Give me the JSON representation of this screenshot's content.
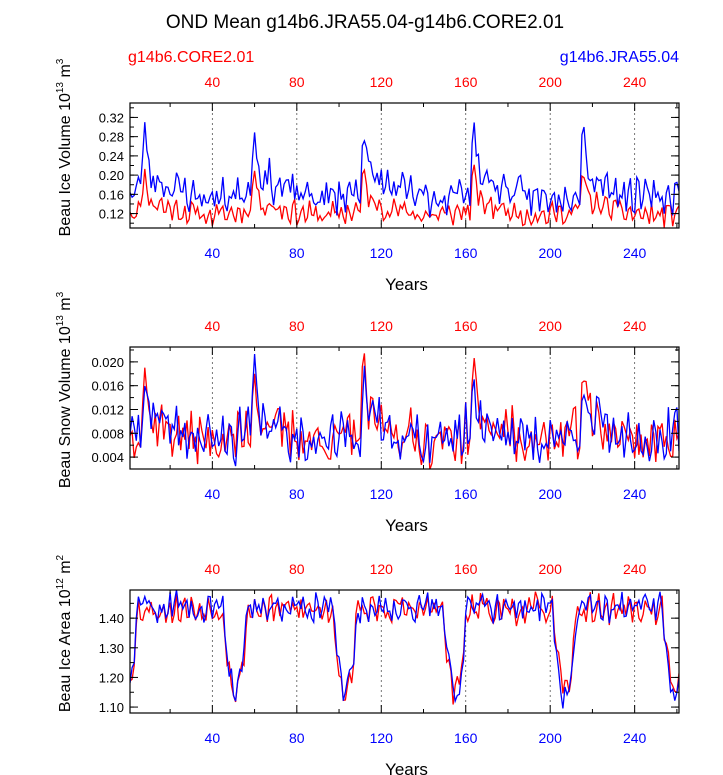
{
  "title": "OND Mean g14b6.JRA55.04-g14b6.CORE2.01",
  "legend_left": "g14b6.CORE2.01",
  "legend_right": "g14b6.JRA55.04",
  "colors": {
    "red": "#ff0000",
    "blue": "#0000ff",
    "axis": "#000000",
    "grid": "#555555"
  },
  "chart_data": [
    {
      "type": "line",
      "name": "panel-ice-volume",
      "ylabel": "Beau Ice Volume 10",
      "ylabel_sup": "13",
      "ylabel_unit": " m",
      "ylabel_unit_sup": "3",
      "xlabel": "Years",
      "xlim": [
        1,
        261
      ],
      "ylim": [
        0.09,
        0.35
      ],
      "yticks": [
        0.12,
        0.16,
        0.2,
        0.24,
        0.28,
        0.32
      ],
      "ytick_labels": [
        "0.12",
        "0.16",
        "0.20",
        "0.24",
        "0.28",
        "0.32"
      ],
      "xticks": [
        40,
        80,
        120,
        160,
        200,
        240
      ],
      "xtick_labels": [
        "40",
        "80",
        "120",
        "160",
        "200",
        "240"
      ],
      "series": [
        {
          "name": "g14b6.CORE2.01",
          "color": "#ff0000",
          "base": 0.13,
          "amp": 0.09,
          "noise": 0.02,
          "seed": 11
        },
        {
          "name": "g14b6.JRA55.04",
          "color": "#0000ff",
          "base": 0.175,
          "amp": 0.15,
          "noise": 0.03,
          "seed": 23
        }
      ]
    },
    {
      "type": "line",
      "name": "panel-snow-volume",
      "ylabel": "Beau Snow Volume 10",
      "ylabel_sup": "13",
      "ylabel_unit": " m",
      "ylabel_unit_sup": "3",
      "xlabel": "Years",
      "xlim": [
        1,
        261
      ],
      "ylim": [
        0.002,
        0.0225
      ],
      "yticks": [
        0.004,
        0.008,
        0.012,
        0.016,
        0.02
      ],
      "ytick_labels": [
        "0.004",
        "0.008",
        "0.012",
        "0.016",
        "0.020"
      ],
      "xticks": [
        40,
        80,
        120,
        160,
        200,
        240
      ],
      "xtick_labels": [
        "40",
        "80",
        "120",
        "160",
        "200",
        "240"
      ],
      "series": [
        {
          "name": "g14b6.CORE2.01",
          "color": "#ff0000",
          "base": 0.0085,
          "amp": 0.012,
          "noise": 0.0035,
          "seed": 37
        },
        {
          "name": "g14b6.JRA55.04",
          "color": "#0000ff",
          "base": 0.0085,
          "amp": 0.011,
          "noise": 0.0035,
          "seed": 41
        }
      ]
    },
    {
      "type": "line",
      "name": "panel-ice-area",
      "ylabel": "Beau Ice Area 10",
      "ylabel_sup": "12",
      "ylabel_unit": " m",
      "ylabel_unit_sup": "2",
      "xlabel": "Years",
      "xlim": [
        1,
        261
      ],
      "ylim": [
        1.08,
        1.495
      ],
      "yticks": [
        1.1,
        1.2,
        1.3,
        1.4
      ],
      "ytick_labels": [
        "1.10",
        "1.20",
        "1.30",
        "1.40"
      ],
      "xticks": [
        40,
        80,
        120,
        160,
        200,
        240
      ],
      "xtick_labels": [
        "40",
        "80",
        "120",
        "160",
        "200",
        "240"
      ],
      "series": [
        {
          "name": "g14b6.CORE2.01",
          "color": "#ff0000",
          "base": 1.43,
          "amp": 0.28,
          "noise": 0.04,
          "seed": 53
        },
        {
          "name": "g14b6.JRA55.04",
          "color": "#0000ff",
          "base": 1.44,
          "amp": 0.3,
          "noise": 0.04,
          "seed": 59
        }
      ]
    }
  ]
}
